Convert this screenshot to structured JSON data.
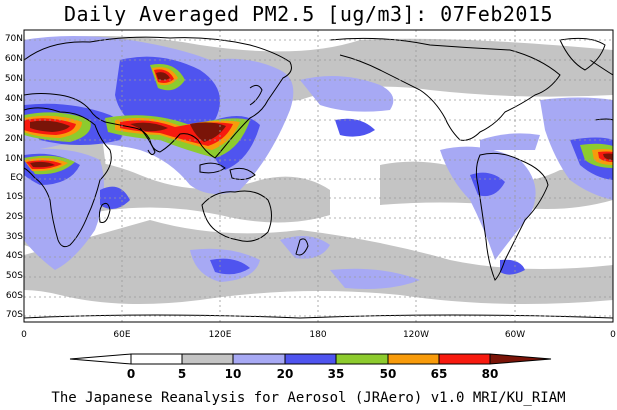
{
  "title": "Daily Averaged PM2.5 [ug/m3]: 07Feb2015",
  "footer": "The Japanese Reanalysis for Aerosol (JRAero) v1.0 MRI/KU_RIAM",
  "lat_labels": [
    "70N",
    "60N",
    "50N",
    "40N",
    "30N",
    "20N",
    "10N",
    "EQ",
    "10S",
    "20S",
    "30S",
    "40S",
    "50S",
    "60S",
    "70S"
  ],
  "lon_labels": [
    "0",
    "60E",
    "120E",
    "180",
    "120W",
    "60W",
    "0"
  ],
  "colorbar": {
    "ticks": [
      "0",
      "5",
      "10",
      "20",
      "35",
      "50",
      "65",
      "80"
    ],
    "colors": [
      "#ffffff",
      "#c4c4c4",
      "#a7a9f4",
      "#4f54ef",
      "#8dcb2e",
      "#f89b0b",
      "#f71a0f",
      "#7a1408"
    ]
  },
  "map_colors": {
    "land_outline": "#000000",
    "grid": "#9a9a9a"
  }
}
